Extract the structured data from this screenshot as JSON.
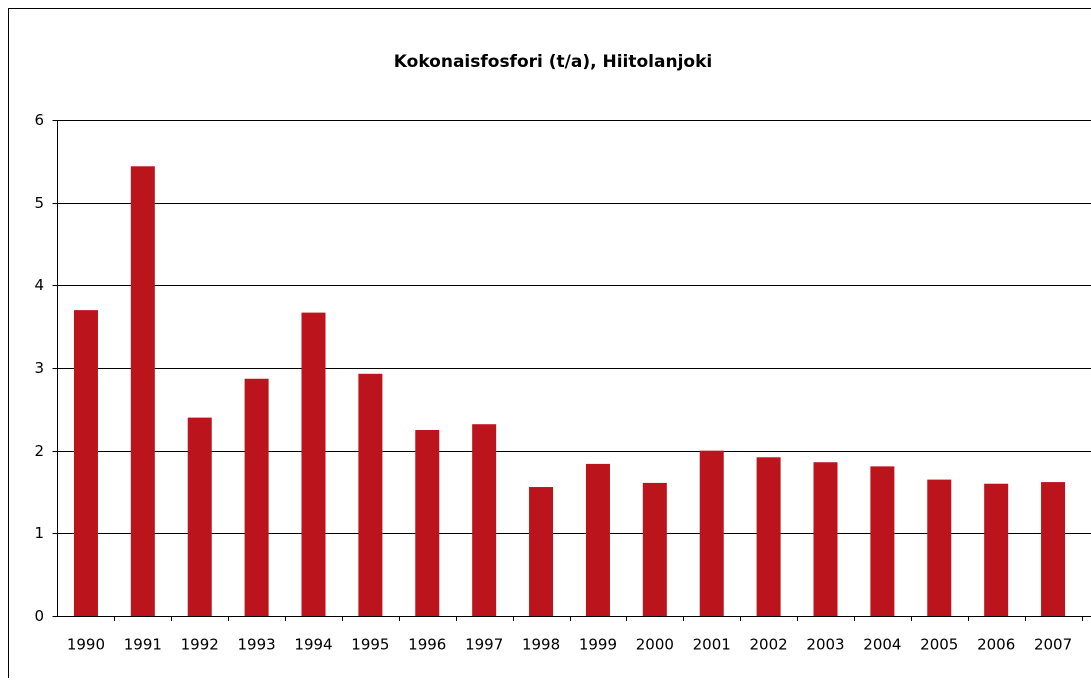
{
  "chart_data": {
    "type": "bar",
    "title": "Kokonaisfosfori (t/a), Hiitolanjoki",
    "categories": [
      "1990",
      "1991",
      "1992",
      "1993",
      "1994",
      "1995",
      "1996",
      "1997",
      "1998",
      "1999",
      "2000",
      "2001",
      "2002",
      "2003",
      "2004",
      "2005",
      "2006",
      "2007"
    ],
    "values": [
      3.7,
      5.44,
      2.4,
      2.87,
      3.67,
      2.93,
      2.25,
      2.32,
      1.56,
      1.84,
      1.61,
      2.0,
      1.92,
      1.86,
      1.81,
      1.65,
      1.6,
      1.62
    ],
    "color": "#bb141c",
    "ylim": [
      0,
      6
    ],
    "yticks": [
      0,
      1,
      2,
      3,
      4,
      5,
      6
    ],
    "grid": true
  }
}
